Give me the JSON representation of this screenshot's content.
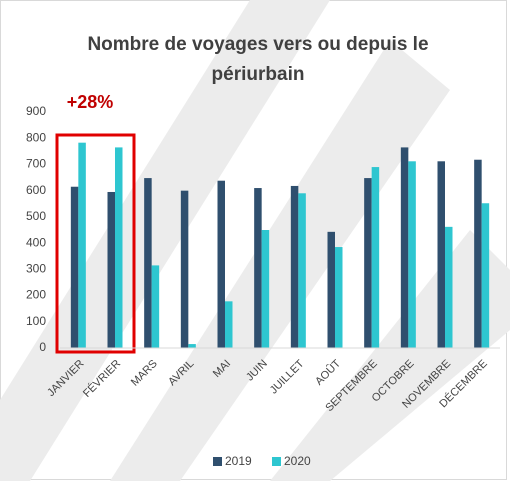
{
  "chart_data": {
    "type": "bar",
    "title": [
      "Nombre de voyages vers ou depuis le",
      "périurbain"
    ],
    "annotation": "+28%",
    "categories": [
      "JANVIER",
      "FÉVRIER",
      "MARS",
      "AVRIL",
      "MAI",
      "JUIN",
      "JUILLET",
      "AOÛT",
      "SEPTEMBRE",
      "OCTOBRE",
      "NOVEMBRE",
      "DÉCEMBRE"
    ],
    "series": [
      {
        "name": "2019",
        "color": "#2f4f6e",
        "values": [
          615,
          595,
          648,
          600,
          638,
          610,
          618,
          443,
          648,
          765,
          712,
          718
        ]
      },
      {
        "name": "2020",
        "color": "#2ec6d0",
        "values": [
          783,
          765,
          315,
          15,
          178,
          450,
          590,
          385,
          690,
          712,
          462,
          552
        ]
      }
    ],
    "ylim": [
      0,
      900
    ],
    "yticks": [
      0,
      100,
      200,
      300,
      400,
      500,
      600,
      700,
      800,
      900
    ],
    "grid": false,
    "legend": "bottom"
  }
}
